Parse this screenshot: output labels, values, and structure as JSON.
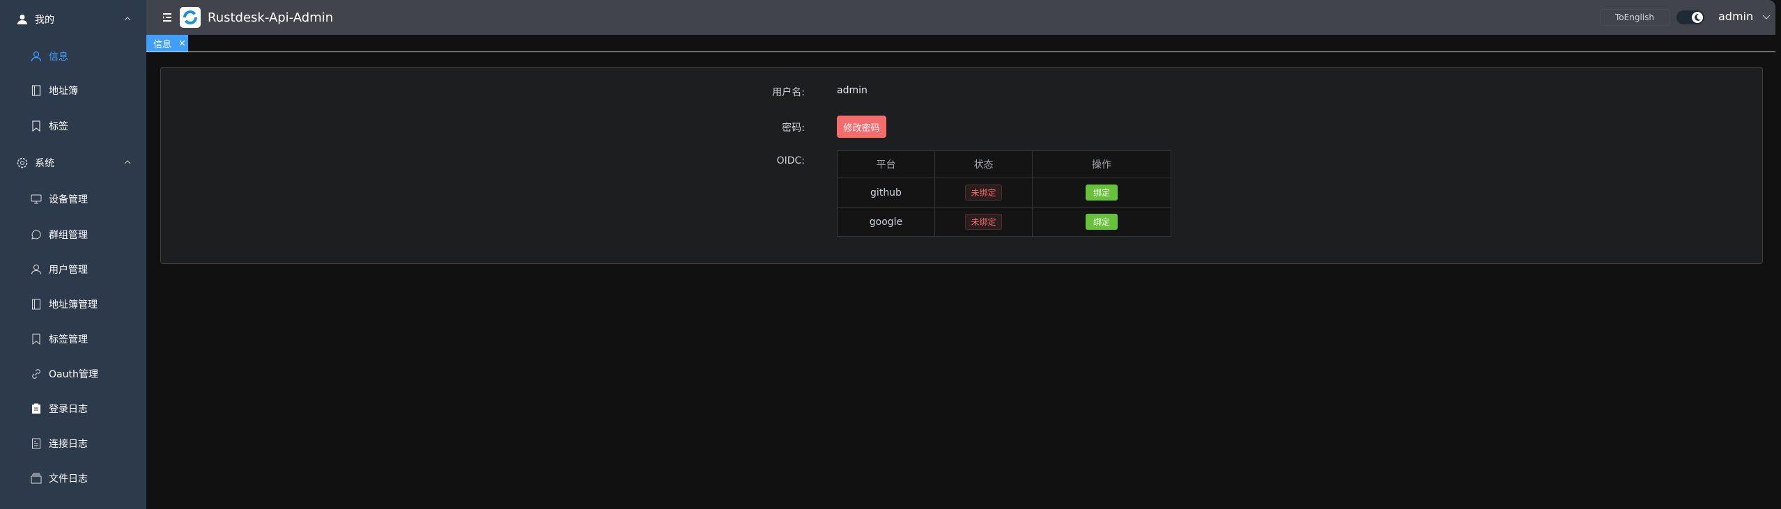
{
  "app": {
    "title": "Rustdesk-Api-Admin"
  },
  "header": {
    "language_button": "ToEnglish",
    "theme": "dark",
    "username": "admin"
  },
  "sidebar": {
    "groups": [
      {
        "label": "我的",
        "icon": "user-icon",
        "expanded": true
      },
      {
        "label": "系统",
        "icon": "gear-icon",
        "expanded": true
      }
    ],
    "my_items": [
      {
        "label": "信息",
        "icon": "user-outline-icon",
        "active": true
      },
      {
        "label": "地址簿",
        "icon": "notebook-icon"
      },
      {
        "label": "标签",
        "icon": "bookmark-icon"
      }
    ],
    "system_items": [
      {
        "label": "设备管理",
        "icon": "monitor-icon"
      },
      {
        "label": "群组管理",
        "icon": "chat-icon"
      },
      {
        "label": "用户管理",
        "icon": "user-outline-icon"
      },
      {
        "label": "地址簿管理",
        "icon": "notebook-icon"
      },
      {
        "label": "标签管理",
        "icon": "bookmark-icon"
      },
      {
        "label": "Oauth管理",
        "icon": "link-icon"
      },
      {
        "label": "登录日志",
        "icon": "clipboard-icon"
      },
      {
        "label": "连接日志",
        "icon": "document-icon"
      },
      {
        "label": "文件日志",
        "icon": "box-icon"
      }
    ]
  },
  "tabs": [
    {
      "label": "信息"
    }
  ],
  "profile": {
    "username_label": "用户名:",
    "username": "admin",
    "password_label": "密码:",
    "change_password": "修改密码",
    "oidc_label": "OIDC:",
    "oidc_columns": [
      "平台",
      "状态",
      "操作"
    ],
    "oidc_rows": [
      {
        "platform": "github",
        "status": "未绑定",
        "action": "绑定"
      },
      {
        "platform": "google",
        "status": "未绑定",
        "action": "绑定"
      }
    ]
  },
  "colors": {
    "accent": "#409eff",
    "danger": "#f56c6c",
    "success": "#67c23a",
    "sidebar": "#2d3a4b"
  }
}
